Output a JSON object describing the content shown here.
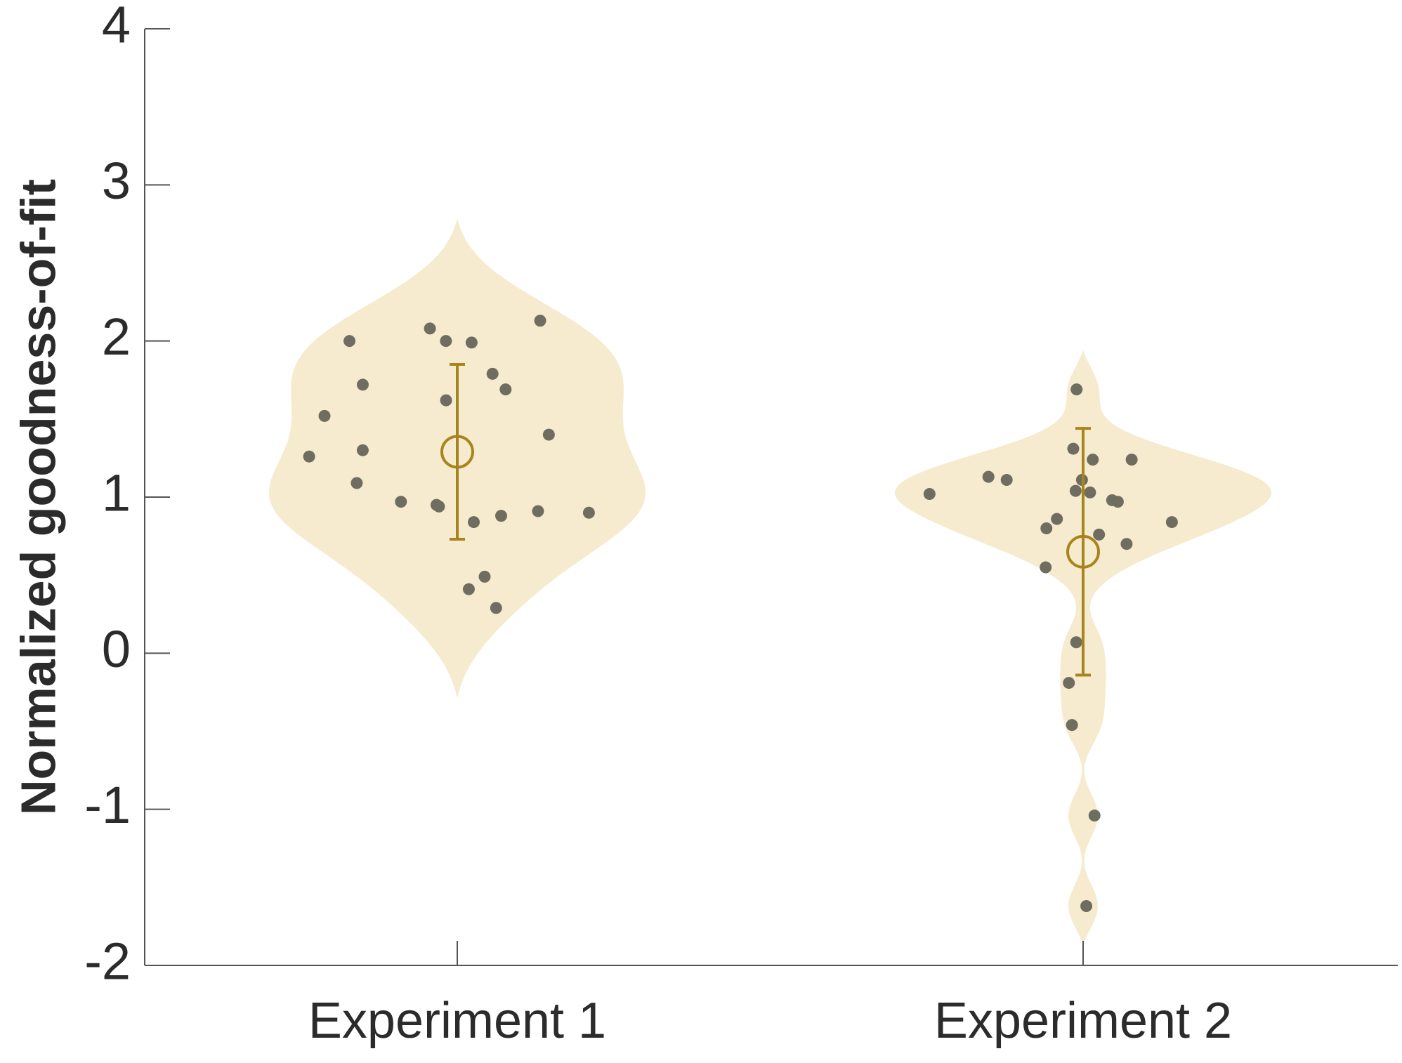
{
  "chart_data": {
    "type": "violin",
    "y_label": "Normalized goodness-of-fit",
    "categories": [
      "Experiment 1",
      "Experiment 2"
    ],
    "ylim": [
      -2,
      4
    ],
    "yticks": [
      -2,
      -1,
      0,
      1,
      2,
      3,
      4
    ],
    "violin_color": "#f6ebcf",
    "point_color": "#6f6d60",
    "mean_color": "#a8841e",
    "groups": [
      {
        "values": [
          2.13,
          2.0,
          1.99,
          2.08,
          2.0,
          1.79,
          1.72,
          1.69,
          1.62,
          1.52,
          1.3,
          1.4,
          1.26,
          1.09,
          0.94,
          0.9,
          0.95,
          0.88,
          0.97,
          0.91,
          0.84,
          0.49,
          0.41,
          0.29
        ],
        "mean": 1.29,
        "error": 0.56
      },
      {
        "values": [
          1.69,
          1.31,
          1.24,
          1.24,
          1.13,
          1.11,
          1.11,
          1.04,
          1.03,
          1.02,
          0.98,
          0.97,
          0.86,
          0.84,
          0.8,
          0.76,
          0.7,
          0.55,
          0.07,
          -0.19,
          -0.46,
          -1.04,
          -1.62
        ],
        "mean": 0.65,
        "error": 0.79
      }
    ]
  }
}
